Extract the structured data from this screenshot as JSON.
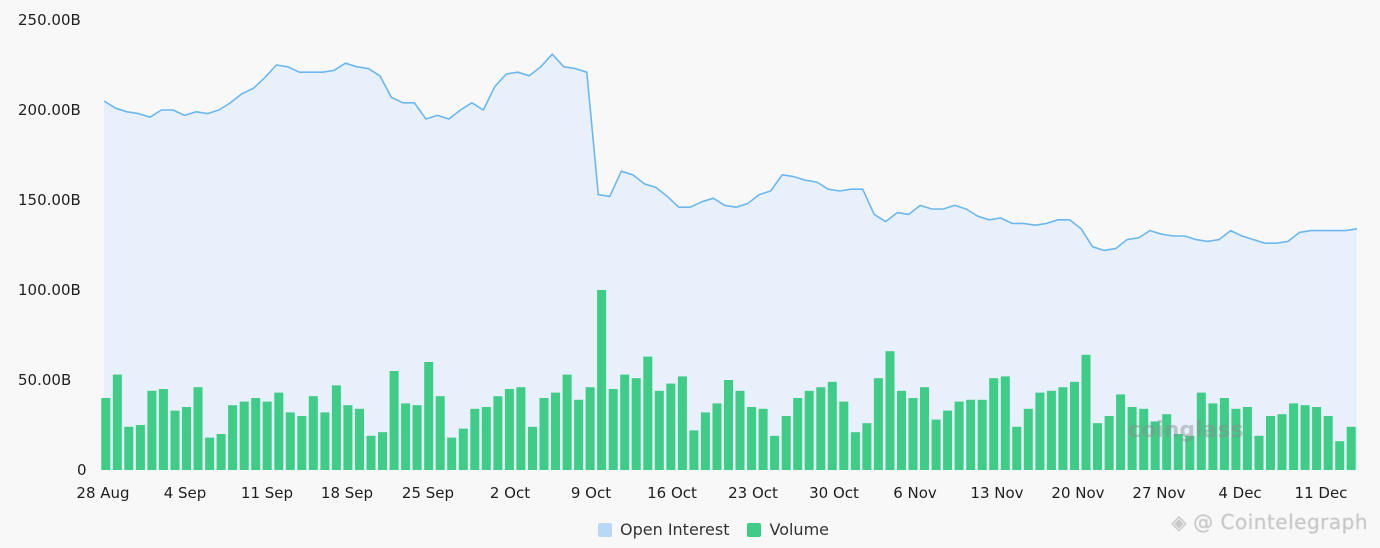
{
  "chart_data": {
    "type": "bar",
    "xlabel": "",
    "ylabel": "",
    "ylim": [
      0,
      250
    ],
    "y_ticks": [
      "0",
      "50.00B",
      "100.00B",
      "150.00B",
      "200.00B",
      "250.00B"
    ],
    "x_ticks": [
      "28 Aug",
      "4 Sep",
      "11 Sep",
      "18 Sep",
      "25 Sep",
      "2 Oct",
      "9 Oct",
      "16 Oct",
      "23 Oct",
      "30 Oct",
      "6 Nov",
      "13 Nov",
      "20 Nov",
      "27 Nov",
      "4 Dec",
      "11 Dec"
    ],
    "grid": false,
    "legend_position": "bottom-center",
    "series": [
      {
        "name": "Open Interest",
        "type": "area",
        "color": "#6cb8ee",
        "fill": "#e8f1fb",
        "values": [
          205,
          201,
          199,
          198,
          196,
          200,
          200,
          197,
          199,
          198,
          200,
          204,
          209,
          212,
          218,
          225,
          224,
          221,
          221,
          221,
          222,
          226,
          224,
          223,
          219,
          207,
          204,
          204,
          195,
          197,
          195,
          200,
          204,
          200,
          213,
          220,
          221,
          219,
          224,
          231,
          224,
          223,
          221,
          153,
          152,
          166,
          164,
          159,
          157,
          152,
          146,
          146,
          149,
          151,
          147,
          146,
          148,
          153,
          155,
          164,
          163,
          161,
          160,
          156,
          155,
          156,
          156,
          142,
          138,
          143,
          142,
          147,
          145,
          145,
          147,
          145,
          141,
          139,
          140,
          137,
          137,
          136,
          137,
          139,
          139,
          134,
          124,
          122,
          123,
          128,
          129,
          133,
          131,
          130,
          130,
          128,
          127,
          128,
          133,
          130,
          128,
          126,
          126,
          127,
          132,
          133,
          133,
          133,
          133,
          134
        ]
      },
      {
        "name": "Volume",
        "type": "bar",
        "color": "#3ecc86",
        "values": [
          40,
          53,
          24,
          25,
          44,
          45,
          33,
          35,
          46,
          18,
          20,
          36,
          38,
          40,
          38,
          43,
          32,
          30,
          41,
          32,
          47,
          36,
          34,
          19,
          21,
          55,
          37,
          36,
          60,
          41,
          18,
          23,
          34,
          35,
          41,
          45,
          46,
          24,
          40,
          43,
          53,
          39,
          46,
          100,
          45,
          53,
          51,
          63,
          44,
          48,
          52,
          22,
          32,
          37,
          50,
          44,
          35,
          34,
          19,
          30,
          40,
          44,
          46,
          49,
          38,
          21,
          26,
          51,
          66,
          44,
          40,
          46,
          28,
          33,
          38,
          39,
          39,
          51,
          52,
          24,
          34,
          43,
          44,
          46,
          49,
          64,
          26,
          30,
          42,
          35,
          34,
          27,
          31,
          20,
          19,
          43,
          37,
          40,
          34,
          35,
          19,
          30,
          31,
          37,
          36,
          35,
          30,
          16,
          24
        ]
      }
    ]
  },
  "legend": {
    "items": [
      {
        "label": "Open Interest",
        "color": "#b9d8f7"
      },
      {
        "label": "Volume",
        "color": "#3ecc86"
      }
    ]
  },
  "watermarks": {
    "coinglass": "coinglass",
    "cointelegraph": "@ Cointelegraph"
  }
}
